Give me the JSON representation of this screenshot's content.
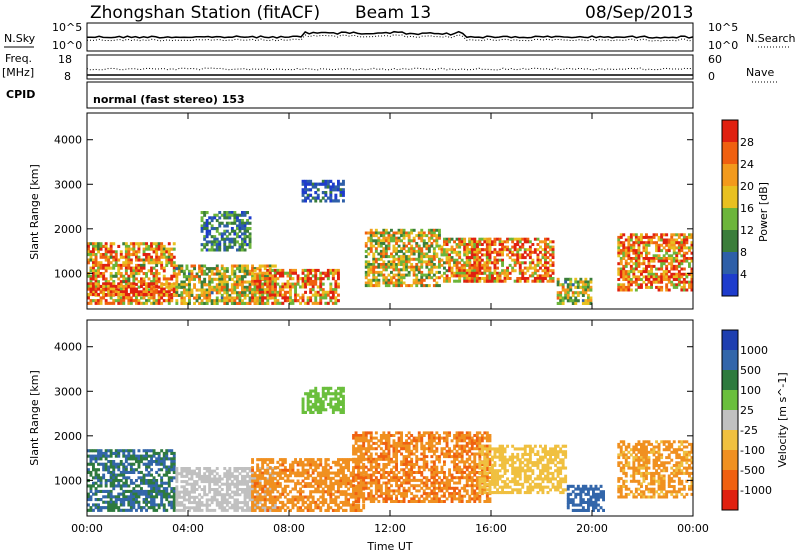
{
  "header": {
    "station": "Zhongshan Station (fitACF)",
    "beam": "Beam 13",
    "date": "08/Sep/2013"
  },
  "panels": {
    "nsky": {
      "left_label": "N.Sky",
      "right_label": "N.Search",
      "left_ticks": [
        "10^5",
        "10^0"
      ],
      "right_ticks": [
        "10^5",
        "10^0"
      ]
    },
    "freq": {
      "left_label_1": "Freq.",
      "left_label_2": "[MHz]",
      "left_ticks": [
        "18",
        "8"
      ],
      "right_label": "Nave",
      "right_ticks": [
        "60",
        "0"
      ]
    },
    "cpid": {
      "label": "CPID",
      "text": "normal (fast stereo) 153"
    }
  },
  "colors": {
    "power": [
      "#1e3ccc",
      "#2e5fa8",
      "#3a7d3a",
      "#6cb53a",
      "#e8c020",
      "#f39a1c",
      "#f06010",
      "#e02010"
    ],
    "velocity": [
      "#1f3fb0",
      "#3366aa",
      "#2e7a3e",
      "#6abf3c",
      "#c0c0c0",
      "#f0c040",
      "#f09020",
      "#f06010",
      "#e02010"
    ]
  },
  "chart_data": [
    {
      "type": "heatmap",
      "name": "power",
      "ylabel": "Slant Range [km]",
      "yticks": [
        "1000",
        "2000",
        "3000",
        "4000"
      ],
      "ylim": [
        200,
        4600
      ],
      "xticks": [
        "00:00",
        "04:00",
        "08:00",
        "12:00",
        "16:00",
        "20:00",
        "00:00"
      ],
      "xlim": [
        0,
        24
      ],
      "colorbar": {
        "label": "Power [dB]",
        "ticks": [
          "28",
          "24",
          "20",
          "16",
          "12",
          "8",
          "4"
        ],
        "range": [
          0,
          32
        ]
      },
      "regions": [
        {
          "t0": 0.0,
          "t1": 3.5,
          "r0": 300,
          "r1": 1700,
          "v": 22
        },
        {
          "t0": 0.0,
          "t1": 3.5,
          "r0": 500,
          "r1": 800,
          "v": 28
        },
        {
          "t0": 3.5,
          "t1": 7.5,
          "r0": 300,
          "r1": 1200,
          "v": 17
        },
        {
          "t0": 4.5,
          "t1": 6.5,
          "r0": 1500,
          "r1": 2400,
          "v": 9
        },
        {
          "t0": 6.5,
          "t1": 10.0,
          "r0": 300,
          "r1": 1100,
          "v": 24
        },
        {
          "t0": 8.5,
          "t1": 10.2,
          "r0": 2600,
          "r1": 3100,
          "v": 5
        },
        {
          "t0": 11.0,
          "t1": 14.0,
          "r0": 700,
          "r1": 2000,
          "v": 18
        },
        {
          "t0": 14.0,
          "t1": 16.0,
          "r0": 800,
          "r1": 1800,
          "v": 20
        },
        {
          "t0": 15.0,
          "t1": 18.5,
          "r0": 800,
          "r1": 1800,
          "v": 25
        },
        {
          "t0": 18.6,
          "t1": 20.0,
          "r0": 300,
          "r1": 900,
          "v": 16
        },
        {
          "t0": 21.0,
          "t1": 24.0,
          "r0": 600,
          "r1": 1900,
          "v": 23
        }
      ]
    },
    {
      "type": "heatmap",
      "name": "velocity",
      "ylabel": "Slant Range [km]",
      "xlabel": "Time UT",
      "yticks": [
        "1000",
        "2000",
        "3000",
        "4000"
      ],
      "ylim": [
        200,
        4600
      ],
      "xticks": [
        "00:00",
        "04:00",
        "08:00",
        "12:00",
        "16:00",
        "20:00",
        "00:00"
      ],
      "xlim": [
        0,
        24
      ],
      "colorbar": {
        "label": "Velocity [m s^-1]",
        "ticks": [
          "1000",
          "500",
          "100",
          "25",
          "-25",
          "-100",
          "-500",
          "-1000"
        ]
      },
      "regions": [
        {
          "t0": 0.0,
          "t1": 3.5,
          "r0": 300,
          "r1": 1700,
          "v": 100
        },
        {
          "t0": 3.5,
          "t1": 7.5,
          "r0": 300,
          "r1": 1300,
          "v": -50
        },
        {
          "t0": 6.5,
          "t1": 11.0,
          "r0": 300,
          "r1": 1500,
          "v": -400
        },
        {
          "t0": 8.5,
          "t1": 10.2,
          "r0": 2500,
          "r1": 3100,
          "v": 10
        },
        {
          "t0": 10.5,
          "t1": 16.0,
          "r0": 500,
          "r1": 2100,
          "v": -450
        },
        {
          "t0": 15.5,
          "t1": 19.0,
          "r0": 700,
          "r1": 1800,
          "v": -150
        },
        {
          "t0": 19.0,
          "t1": 20.5,
          "r0": 300,
          "r1": 900,
          "v": 300
        },
        {
          "t0": 21.0,
          "t1": 24.0,
          "r0": 600,
          "r1": 1900,
          "v": -300
        }
      ]
    }
  ]
}
